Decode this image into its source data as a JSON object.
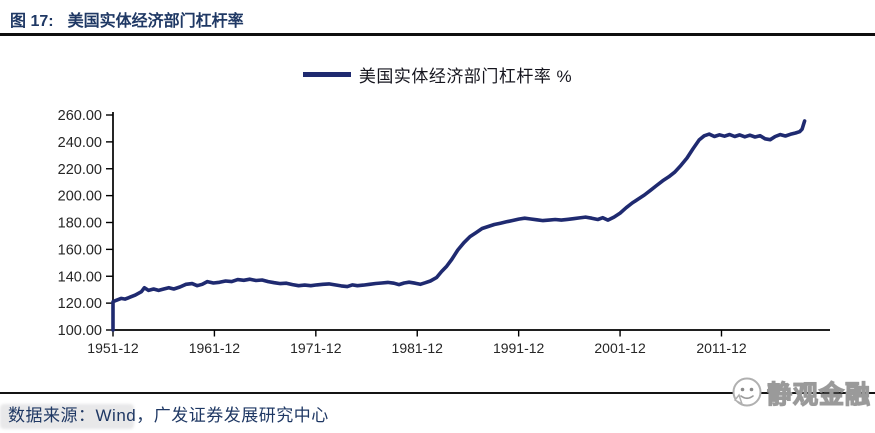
{
  "header": {
    "figure_label": "图 17:",
    "title": "美国实体经济部门杠杆率"
  },
  "legend": {
    "label": "美国实体经济部门杠杆率 %"
  },
  "chart_data": {
    "type": "line",
    "title": "美国实体经济部门杠杆率 %",
    "xlabel": "",
    "ylabel": "",
    "xlim": [
      1952,
      2022.7
    ],
    "ylim": [
      100,
      260
    ],
    "grid": false,
    "legend_position": "top-center",
    "x_ticks": [
      {
        "year": 1952,
        "label": "1951-12"
      },
      {
        "year": 1962,
        "label": "1961-12"
      },
      {
        "year": 1972,
        "label": "1971-12"
      },
      {
        "year": 1982,
        "label": "1981-12"
      },
      {
        "year": 1992,
        "label": "1991-12"
      },
      {
        "year": 2002,
        "label": "2001-12"
      },
      {
        "year": 2012,
        "label": "2011-12"
      }
    ],
    "y_ticks": [
      {
        "value": 100,
        "label": "100.00"
      },
      {
        "value": 120,
        "label": "120.00"
      },
      {
        "value": 140,
        "label": "140.00"
      },
      {
        "value": 160,
        "label": "160.00"
      },
      {
        "value": 180,
        "label": "180.00"
      },
      {
        "value": 200,
        "label": "200.00"
      },
      {
        "value": 220,
        "label": "220.00"
      },
      {
        "value": 240,
        "label": "240.00"
      },
      {
        "value": 260,
        "label": "260.00"
      }
    ],
    "series": [
      {
        "name": "美国实体经济部门杠杆率 %",
        "color": "#1f2a70",
        "points": [
          [
            1952,
            100
          ],
          [
            1952,
            121
          ],
          [
            1952.3,
            122
          ],
          [
            1952.8,
            123.5
          ],
          [
            1953.2,
            123
          ],
          [
            1953.7,
            124.5
          ],
          [
            1954.2,
            126
          ],
          [
            1954.8,
            128.5
          ],
          [
            1955.1,
            131.5
          ],
          [
            1955.5,
            129.5
          ],
          [
            1956,
            130.5
          ],
          [
            1956.5,
            129.5
          ],
          [
            1957,
            130.5
          ],
          [
            1957.5,
            131.5
          ],
          [
            1958,
            130.5
          ],
          [
            1958.6,
            132
          ],
          [
            1959.2,
            134
          ],
          [
            1959.8,
            134.5
          ],
          [
            1960.3,
            133
          ],
          [
            1960.8,
            134
          ],
          [
            1961.3,
            136
          ],
          [
            1961.9,
            135
          ],
          [
            1962.5,
            135.5
          ],
          [
            1963.1,
            136.5
          ],
          [
            1963.7,
            136
          ],
          [
            1964.3,
            137.5
          ],
          [
            1964.9,
            137
          ],
          [
            1965.5,
            137.8
          ],
          [
            1966.1,
            136.8
          ],
          [
            1966.7,
            137.2
          ],
          [
            1967.3,
            136
          ],
          [
            1967.9,
            135.2
          ],
          [
            1968.5,
            134.5
          ],
          [
            1969.1,
            134.8
          ],
          [
            1969.7,
            133.8
          ],
          [
            1970.3,
            133
          ],
          [
            1970.9,
            133.4
          ],
          [
            1971.5,
            133
          ],
          [
            1972.1,
            133.6
          ],
          [
            1972.7,
            134
          ],
          [
            1973.3,
            134.3
          ],
          [
            1973.9,
            133.6
          ],
          [
            1974.5,
            132.8
          ],
          [
            1975.1,
            132.3
          ],
          [
            1975.6,
            133.6
          ],
          [
            1976.1,
            133
          ],
          [
            1976.7,
            133.4
          ],
          [
            1977.3,
            134
          ],
          [
            1977.9,
            134.6
          ],
          [
            1978.5,
            135
          ],
          [
            1979.1,
            135.4
          ],
          [
            1979.7,
            134.8
          ],
          [
            1980.2,
            133.8
          ],
          [
            1980.7,
            135
          ],
          [
            1981.2,
            135.6
          ],
          [
            1981.8,
            134.8
          ],
          [
            1982.3,
            134
          ],
          [
            1982.8,
            135.2
          ],
          [
            1983.3,
            136.5
          ],
          [
            1983.9,
            139
          ],
          [
            1984.4,
            143.5
          ],
          [
            1984.9,
            147.5
          ],
          [
            1985.4,
            152.5
          ],
          [
            1986,
            159.5
          ],
          [
            1986.6,
            165
          ],
          [
            1987.2,
            169.5
          ],
          [
            1987.8,
            172.5
          ],
          [
            1988.4,
            175.5
          ],
          [
            1989,
            177
          ],
          [
            1989.6,
            178.5
          ],
          [
            1990.2,
            179.5
          ],
          [
            1990.8,
            180.5
          ],
          [
            1991.4,
            181.5
          ],
          [
            1992,
            182.5
          ],
          [
            1992.6,
            183.2
          ],
          [
            1993.2,
            182.6
          ],
          [
            1993.8,
            182
          ],
          [
            1994.4,
            181.4
          ],
          [
            1995,
            181.8
          ],
          [
            1995.6,
            182.2
          ],
          [
            1996.2,
            181.8
          ],
          [
            1996.8,
            182.3
          ],
          [
            1997.4,
            182.8
          ],
          [
            1998,
            183.4
          ],
          [
            1998.6,
            184
          ],
          [
            1999.2,
            183.2
          ],
          [
            1999.8,
            182.2
          ],
          [
            2000.3,
            183.6
          ],
          [
            2000.8,
            181.8
          ],
          [
            2001.4,
            184
          ],
          [
            2002,
            187
          ],
          [
            2002.6,
            191
          ],
          [
            2003.2,
            194.5
          ],
          [
            2003.8,
            197.5
          ],
          [
            2004.4,
            200.5
          ],
          [
            2005,
            204
          ],
          [
            2005.6,
            207.5
          ],
          [
            2006.2,
            211
          ],
          [
            2006.8,
            214
          ],
          [
            2007.4,
            217.5
          ],
          [
            2008,
            222.5
          ],
          [
            2008.6,
            228
          ],
          [
            2009.2,
            235
          ],
          [
            2009.8,
            241.5
          ],
          [
            2010.3,
            244.5
          ],
          [
            2010.8,
            245.8
          ],
          [
            2011.3,
            244
          ],
          [
            2011.8,
            245.3
          ],
          [
            2012.3,
            244.2
          ],
          [
            2012.8,
            245.5
          ],
          [
            2013.3,
            244
          ],
          [
            2013.8,
            245.2
          ],
          [
            2014.3,
            243.8
          ],
          [
            2014.8,
            245
          ],
          [
            2015.3,
            243.6
          ],
          [
            2015.8,
            244.6
          ],
          [
            2016.3,
            242.3
          ],
          [
            2016.8,
            241.6
          ],
          [
            2017.3,
            244
          ],
          [
            2017.8,
            245.4
          ],
          [
            2018.3,
            244.4
          ],
          [
            2018.8,
            245.6
          ],
          [
            2019.3,
            246.6
          ],
          [
            2019.7,
            247.6
          ],
          [
            2019.95,
            249.5
          ],
          [
            2020.2,
            255.5
          ]
        ]
      }
    ]
  },
  "footer": {
    "source": "数据来源：Wind，广发证券发展研究中心"
  },
  "brand": {
    "name": "静观金融"
  },
  "colors": {
    "line": "#1f2a70",
    "title_text": "#1f3864",
    "axis": "#000000",
    "tick_label": "#262626"
  }
}
